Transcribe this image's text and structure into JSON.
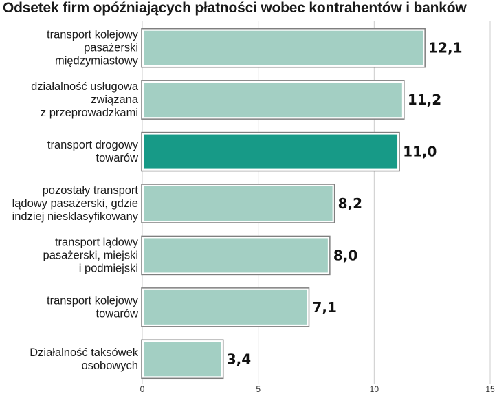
{
  "chart_data": {
    "type": "bar",
    "orientation": "horizontal",
    "title": "Odsetek firm opóźniających płatności wobec kontrahentów i banków",
    "categories": [
      [
        "transport kolejowy",
        "pasażerski",
        "międzymiastowy"
      ],
      [
        "działalność usługowa",
        "związana",
        "z przeprowadzkami"
      ],
      [
        "transport drogowy",
        "towarów"
      ],
      [
        "pozostały transport",
        "lądowy pasażerski, gdzie",
        "indziej niesklasyfikowany"
      ],
      [
        "transport lądowy",
        "pasażerski, miejski",
        "i podmiejski"
      ],
      [
        "transport kolejowy",
        "towarów"
      ],
      [
        "Działalność taksówek",
        "osobowych"
      ]
    ],
    "values": [
      12.1,
      11.2,
      11.0,
      8.2,
      8.0,
      7.1,
      3.4
    ],
    "value_labels": [
      "12,1",
      "11,2",
      "11,0",
      "8,2",
      "8,0",
      "7,1",
      "3,4"
    ],
    "highlight_index": 2,
    "xlim": [
      0,
      15
    ],
    "xticks": [
      0,
      5,
      10,
      15
    ],
    "xtick_labels": [
      "0",
      "5",
      "10",
      "15"
    ],
    "grid": true,
    "colors": {
      "bar": "#a3cfc3",
      "highlight": "#179a87",
      "bar_outline": "#7f7f7f",
      "grid": "#cccccc"
    }
  }
}
